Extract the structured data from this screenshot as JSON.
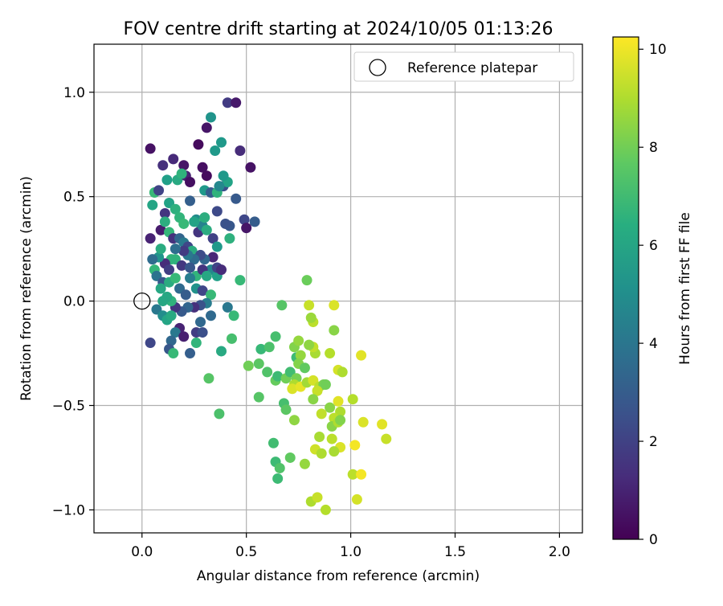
{
  "chart_data": {
    "type": "scatter",
    "title": "FOV centre drift starting at 2024/10/05 01:13:26",
    "xlabel": "Angular distance from reference (arcmin)",
    "ylabel": "Rotation from reference (arcmin)",
    "xlim": [
      -0.23,
      2.11
    ],
    "ylim": [
      -1.11,
      1.23
    ],
    "xticks": [
      0.0,
      0.5,
      1.0,
      1.5,
      2.0
    ],
    "xtick_labels": [
      "0.0",
      "0.5",
      "1.0",
      "1.5",
      "2.0"
    ],
    "yticks": [
      -1.0,
      -0.5,
      0.0,
      0.5,
      1.0
    ],
    "ytick_labels": [
      "−1.0",
      "−0.5",
      "0.0",
      "0.5",
      "1.0"
    ],
    "grid": true,
    "legend": {
      "placement": "top-right",
      "entries": [
        "Reference platepar"
      ]
    },
    "reference_point": {
      "x": 0.0,
      "y": 0.0
    },
    "colorbar": {
      "label": "Hours from first FF file",
      "colormap": "viridis",
      "range": [
        0,
        10.25
      ],
      "ticks": [
        0,
        2,
        4,
        6,
        8,
        10
      ],
      "tick_labels": [
        "0",
        "2",
        "4",
        "6",
        "8",
        "10"
      ]
    },
    "points": [
      [
        0.04,
        0.73,
        0.5
      ],
      [
        0.15,
        0.68,
        1.2
      ],
      [
        0.2,
        0.65,
        0.6
      ],
      [
        0.1,
        0.65,
        1.4
      ],
      [
        0.17,
        0.58,
        6.2
      ],
      [
        0.12,
        0.58,
        5.8
      ],
      [
        0.21,
        0.6,
        1.0
      ],
      [
        0.23,
        0.57,
        0.4
      ],
      [
        0.27,
        0.75,
        0.3
      ],
      [
        0.31,
        0.83,
        0.6
      ],
      [
        0.33,
        0.88,
        5.3
      ],
      [
        0.38,
        0.76,
        5.5
      ],
      [
        0.35,
        0.72,
        5.5
      ],
      [
        0.41,
        0.95,
        1.8
      ],
      [
        0.45,
        0.95,
        0.7
      ],
      [
        0.47,
        0.72,
        1.3
      ],
      [
        0.52,
        0.64,
        0.5
      ],
      [
        0.29,
        0.64,
        0.4
      ],
      [
        0.31,
        0.6,
        0.3
      ],
      [
        0.19,
        0.61,
        6.6
      ],
      [
        0.06,
        0.52,
        6.9
      ],
      [
        0.08,
        0.53,
        2.1
      ],
      [
        0.05,
        0.46,
        6.0
      ],
      [
        0.11,
        0.42,
        1.6
      ],
      [
        0.13,
        0.47,
        5.9
      ],
      [
        0.16,
        0.44,
        6.5
      ],
      [
        0.18,
        0.4,
        6.7
      ],
      [
        0.2,
        0.37,
        6.9
      ],
      [
        0.23,
        0.48,
        3.1
      ],
      [
        0.26,
        0.39,
        4.9
      ],
      [
        0.28,
        0.37,
        6.8
      ],
      [
        0.3,
        0.53,
        5.5
      ],
      [
        0.33,
        0.52,
        3.0
      ],
      [
        0.36,
        0.52,
        6.6
      ],
      [
        0.39,
        0.55,
        2.5
      ],
      [
        0.41,
        0.57,
        5.9
      ],
      [
        0.36,
        0.43,
        2.3
      ],
      [
        0.39,
        0.6,
        5.5
      ],
      [
        0.45,
        0.49,
        2.9
      ],
      [
        0.49,
        0.39,
        2.2
      ],
      [
        0.54,
        0.38,
        3.0
      ],
      [
        0.5,
        0.35,
        0.6
      ],
      [
        0.42,
        0.36,
        2.8
      ],
      [
        0.4,
        0.37,
        2.6
      ],
      [
        0.37,
        0.55,
        4.8
      ],
      [
        0.04,
        0.3,
        1.0
      ],
      [
        0.09,
        0.34,
        0.8
      ],
      [
        0.11,
        0.38,
        6.4
      ],
      [
        0.13,
        0.33,
        6.8
      ],
      [
        0.15,
        0.3,
        1.5
      ],
      [
        0.18,
        0.3,
        3.3
      ],
      [
        0.2,
        0.28,
        4.2
      ],
      [
        0.22,
        0.26,
        2.2
      ],
      [
        0.24,
        0.24,
        6.3
      ],
      [
        0.27,
        0.33,
        1.6
      ],
      [
        0.29,
        0.36,
        4.6
      ],
      [
        0.31,
        0.34,
        6.3
      ],
      [
        0.34,
        0.3,
        2.0
      ],
      [
        0.36,
        0.26,
        5.5
      ],
      [
        0.34,
        0.21,
        1.1
      ],
      [
        0.33,
        0.15,
        4.7
      ],
      [
        0.36,
        0.12,
        5.8
      ],
      [
        0.3,
        0.2,
        3.4
      ],
      [
        0.28,
        0.22,
        2.4
      ],
      [
        0.25,
        0.2,
        3.6
      ],
      [
        0.22,
        0.22,
        4.1
      ],
      [
        0.2,
        0.24,
        1.8
      ],
      [
        0.16,
        0.25,
        3.7
      ],
      [
        0.14,
        0.2,
        6.7
      ],
      [
        0.11,
        0.18,
        1.3
      ],
      [
        0.08,
        0.21,
        5.3
      ],
      [
        0.06,
        0.15,
        6.8
      ],
      [
        0.09,
        0.25,
        6.3
      ],
      [
        0.13,
        0.15,
        1.9
      ],
      [
        0.16,
        0.2,
        6.6
      ],
      [
        0.19,
        0.17,
        1.7
      ],
      [
        0.23,
        0.16,
        2.8
      ],
      [
        0.26,
        0.12,
        6.7
      ],
      [
        0.29,
        0.15,
        1.6
      ],
      [
        0.31,
        0.12,
        6.1
      ],
      [
        0.36,
        0.16,
        2.1
      ],
      [
        0.38,
        0.15,
        1.3
      ],
      [
        0.47,
        0.1,
        6.9
      ],
      [
        0.07,
        0.12,
        3.9
      ],
      [
        0.1,
        0.09,
        2.8
      ],
      [
        0.13,
        0.09,
        6.3
      ],
      [
        0.16,
        0.11,
        6.9
      ],
      [
        0.18,
        0.06,
        3.5
      ],
      [
        0.21,
        0.03,
        3.0
      ],
      [
        0.23,
        0.11,
        4.4
      ],
      [
        0.26,
        0.06,
        5.2
      ],
      [
        0.29,
        0.05,
        2.2
      ],
      [
        0.33,
        0.03,
        6.9
      ],
      [
        0.31,
        -0.01,
        4.3
      ],
      [
        0.28,
        -0.02,
        2.6
      ],
      [
        0.25,
        -0.03,
        1.4
      ],
      [
        0.22,
        -0.03,
        3.3
      ],
      [
        0.19,
        -0.05,
        2.9
      ],
      [
        0.16,
        -0.03,
        1.6
      ],
      [
        0.14,
        0.0,
        6.6
      ],
      [
        0.12,
        0.02,
        6.1
      ],
      [
        0.09,
        0.06,
        6.1
      ],
      [
        0.07,
        -0.04,
        4.1
      ],
      [
        0.1,
        -0.07,
        5.0
      ],
      [
        0.12,
        -0.09,
        6.0
      ],
      [
        0.14,
        -0.07,
        6.2
      ],
      [
        0.18,
        -0.13,
        1.0
      ],
      [
        0.16,
        -0.15,
        4.1
      ],
      [
        0.14,
        -0.19,
        3.4
      ],
      [
        0.2,
        -0.17,
        0.9
      ],
      [
        0.26,
        -0.15,
        1.9
      ],
      [
        0.26,
        -0.2,
        6.7
      ],
      [
        0.29,
        -0.15,
        2.5
      ],
      [
        0.33,
        -0.07,
        3.5
      ],
      [
        0.41,
        -0.03,
        4.1
      ],
      [
        0.44,
        -0.07,
        6.9
      ],
      [
        0.43,
        -0.18,
        7.2
      ],
      [
        0.38,
        -0.24,
        6.2
      ],
      [
        0.32,
        -0.37,
        7.5
      ],
      [
        0.37,
        -0.54,
        7.3
      ],
      [
        0.04,
        -0.2,
        2.2
      ],
      [
        0.13,
        -0.23,
        2.8
      ],
      [
        0.15,
        -0.25,
        6.9
      ],
      [
        0.23,
        -0.25,
        3.1
      ],
      [
        0.1,
        0.0,
        6.1
      ],
      [
        0.28,
        -0.1,
        3.4
      ],
      [
        0.05,
        0.2,
        3.6
      ],
      [
        0.25,
        0.38,
        5.9
      ],
      [
        0.3,
        0.4,
        6.4
      ],
      [
        0.42,
        0.3,
        6.5
      ],
      [
        0.67,
        -0.02,
        7.5
      ],
      [
        0.79,
        0.1,
        7.9
      ],
      [
        0.8,
        -0.02,
        9.4
      ],
      [
        0.82,
        -0.1,
        9.2
      ],
      [
        0.81,
        -0.08,
        8.7
      ],
      [
        0.92,
        -0.02,
        9.7
      ],
      [
        0.92,
        -0.14,
        8.4
      ],
      [
        1.05,
        -0.26,
        9.8
      ],
      [
        0.64,
        -0.17,
        7.2
      ],
      [
        0.57,
        -0.23,
        6.9
      ],
      [
        0.61,
        -0.22,
        7.3
      ],
      [
        0.56,
        -0.3,
        7.6
      ],
      [
        0.51,
        -0.31,
        8.0
      ],
      [
        0.6,
        -0.34,
        7.4
      ],
      [
        0.64,
        -0.38,
        7.8
      ],
      [
        0.65,
        -0.36,
        7.0
      ],
      [
        0.69,
        -0.37,
        8.0
      ],
      [
        0.71,
        -0.34,
        7.1
      ],
      [
        0.74,
        -0.27,
        7.0
      ],
      [
        0.73,
        -0.22,
        8.3
      ],
      [
        0.75,
        -0.19,
        8.6
      ],
      [
        0.76,
        -0.26,
        8.6
      ],
      [
        0.75,
        -0.3,
        8.3
      ],
      [
        0.78,
        -0.32,
        7.7
      ],
      [
        0.83,
        -0.25,
        8.9
      ],
      [
        0.82,
        -0.22,
        9.3
      ],
      [
        0.9,
        -0.25,
        9.1
      ],
      [
        0.94,
        -0.33,
        9.6
      ],
      [
        0.96,
        -0.34,
        9.0
      ],
      [
        0.74,
        -0.37,
        8.1
      ],
      [
        0.73,
        -0.4,
        9.0
      ],
      [
        0.72,
        -0.42,
        9.7
      ],
      [
        0.76,
        -0.41,
        9.9
      ],
      [
        0.79,
        -0.39,
        8.8
      ],
      [
        0.82,
        -0.38,
        9.6
      ],
      [
        0.85,
        -0.41,
        9.2
      ],
      [
        0.87,
        -0.4,
        8.1
      ],
      [
        0.84,
        -0.43,
        9.4
      ],
      [
        0.56,
        -0.46,
        7.5
      ],
      [
        0.68,
        -0.49,
        7.2
      ],
      [
        0.69,
        -0.52,
        7.6
      ],
      [
        0.82,
        -0.47,
        8.4
      ],
      [
        0.9,
        -0.51,
        8.4
      ],
      [
        0.94,
        -0.48,
        9.8
      ],
      [
        0.95,
        -0.53,
        9.0
      ],
      [
        0.92,
        -0.56,
        9.2
      ],
      [
        0.91,
        -0.6,
        8.4
      ],
      [
        0.94,
        -0.58,
        9.0
      ],
      [
        0.95,
        -0.57,
        8.3
      ],
      [
        1.01,
        -0.47,
        9.1
      ],
      [
        0.86,
        -0.54,
        9.3
      ],
      [
        0.73,
        -0.57,
        8.5
      ],
      [
        0.91,
        -0.66,
        9.2
      ],
      [
        0.95,
        -0.7,
        9.7
      ],
      [
        1.02,
        -0.69,
        10.1
      ],
      [
        1.06,
        -0.58,
        9.7
      ],
      [
        1.15,
        -0.59,
        9.8
      ],
      [
        1.17,
        -0.66,
        9.4
      ],
      [
        0.85,
        -0.65,
        8.9
      ],
      [
        0.83,
        -0.71,
        9.5
      ],
      [
        0.86,
        -0.73,
        9.0
      ],
      [
        0.92,
        -0.72,
        8.9
      ],
      [
        0.78,
        -0.78,
        8.6
      ],
      [
        0.71,
        -0.75,
        7.7
      ],
      [
        0.63,
        -0.68,
        7.1
      ],
      [
        0.64,
        -0.77,
        7.0
      ],
      [
        0.66,
        -0.8,
        7.4
      ],
      [
        0.65,
        -0.85,
        7.0
      ],
      [
        1.01,
        -0.83,
        9.2
      ],
      [
        1.05,
        -0.83,
        10.1
      ],
      [
        0.81,
        -0.96,
        9.0
      ],
      [
        0.84,
        -0.94,
        9.4
      ],
      [
        0.88,
        -1.0,
        9.1
      ],
      [
        1.03,
        -0.95,
        9.6
      ],
      [
        0.8,
        -0.21,
        8.5
      ],
      [
        0.88,
        -0.4,
        8.0
      ]
    ]
  }
}
